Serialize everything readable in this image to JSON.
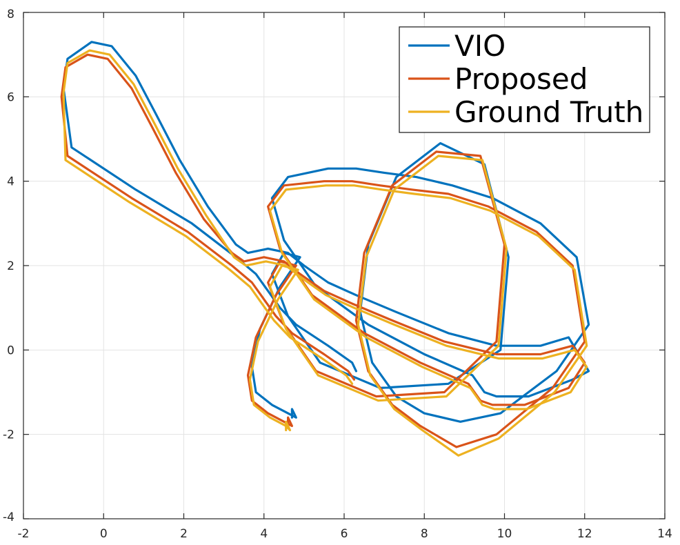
{
  "chart_data": {
    "type": "line",
    "title": "",
    "xlabel": "",
    "ylabel": "",
    "xlim": [
      -2,
      14
    ],
    "ylim": [
      -4,
      8
    ],
    "xticks": [
      -2,
      0,
      2,
      4,
      6,
      8,
      10,
      12,
      14
    ],
    "yticks": [
      -4,
      -2,
      0,
      2,
      4,
      6,
      8
    ],
    "grid": true,
    "legend_position": "top-right",
    "series": [
      {
        "name": "VIO",
        "color": "#0072BD",
        "x": [
          6.3,
          6.2,
          5.6,
          4.8,
          4.4,
          4.1,
          3.8,
          3.3,
          2.2,
          0.8,
          -0.8,
          -1.0,
          -0.9,
          -0.3,
          0.2,
          0.8,
          1.3,
          1.9,
          2.6,
          3.3,
          3.6,
          4.1,
          4.6,
          5.0,
          5.6,
          6.3,
          7.3,
          8.6,
          9.8,
          10.9,
          11.6,
          12.1,
          11.7,
          10.6,
          9.8,
          9.5,
          9.2,
          8.0,
          6.6,
          5.3,
          4.5,
          4.2,
          4.6,
          5.6,
          6.3,
          7.0,
          7.8,
          8.7,
          9.7,
          10.9,
          11.8,
          12.1,
          11.3,
          9.9,
          8.9,
          8.0,
          7.3,
          6.7,
          6.4,
          6.6,
          7.3,
          8.4,
          9.5,
          10.1,
          9.9,
          8.6,
          6.9,
          5.4,
          4.6,
          4.2,
          4.5,
          4.9,
          4.4,
          3.9,
          3.7,
          3.8,
          4.2,
          4.6,
          4.8,
          4.7,
          4.7
        ],
        "y": [
          -0.5,
          -0.3,
          0.1,
          0.6,
          1.0,
          1.4,
          1.8,
          2.2,
          3.0,
          3.8,
          4.8,
          6.2,
          6.9,
          7.3,
          7.2,
          6.5,
          5.6,
          4.5,
          3.4,
          2.5,
          2.3,
          2.4,
          2.3,
          2.0,
          1.6,
          1.3,
          0.9,
          0.4,
          0.1,
          0.1,
          0.3,
          -0.5,
          -0.7,
          -1.1,
          -1.1,
          -1.0,
          -0.6,
          -0.1,
          0.6,
          1.5,
          2.6,
          3.6,
          4.1,
          4.3,
          4.3,
          4.2,
          4.1,
          3.9,
          3.6,
          3.0,
          2.2,
          0.6,
          -0.5,
          -1.5,
          -1.7,
          -1.5,
          -1.1,
          -0.3,
          0.9,
          2.5,
          4.1,
          4.9,
          4.4,
          2.2,
          0.0,
          -0.8,
          -0.9,
          -0.3,
          0.8,
          1.8,
          2.3,
          2.2,
          1.5,
          0.5,
          -0.4,
          -1.0,
          -1.3,
          -1.5,
          -1.6,
          -1.4,
          -1.6
        ]
      },
      {
        "name": "Proposed",
        "color": "#D95319",
        "x": [
          6.25,
          6.1,
          5.5,
          4.7,
          4.3,
          4.0,
          3.7,
          3.2,
          2.1,
          0.7,
          -0.9,
          -1.05,
          -0.95,
          -0.4,
          0.1,
          0.7,
          1.2,
          1.8,
          2.5,
          3.2,
          3.5,
          4.0,
          4.5,
          4.9,
          5.5,
          6.2,
          7.2,
          8.5,
          9.8,
          10.9,
          11.7,
          12.0,
          11.6,
          10.5,
          9.7,
          9.4,
          9.1,
          7.9,
          6.5,
          5.2,
          4.4,
          4.1,
          4.5,
          5.5,
          6.2,
          6.9,
          7.7,
          8.6,
          9.6,
          10.8,
          11.7,
          12.0,
          11.2,
          9.8,
          8.8,
          7.9,
          7.2,
          6.6,
          6.3,
          6.5,
          7.2,
          8.3,
          9.4,
          10.0,
          9.8,
          8.5,
          6.8,
          5.3,
          4.5,
          4.1,
          4.4,
          4.8,
          4.3,
          3.8,
          3.6,
          3.7,
          4.1,
          4.5,
          4.7,
          4.6,
          4.6
        ],
        "y": [
          -0.7,
          -0.5,
          -0.1,
          0.4,
          0.8,
          1.2,
          1.6,
          2.0,
          2.8,
          3.6,
          4.6,
          6.0,
          6.7,
          7.0,
          6.9,
          6.2,
          5.3,
          4.2,
          3.1,
          2.3,
          2.1,
          2.2,
          2.1,
          1.8,
          1.4,
          1.1,
          0.7,
          0.2,
          -0.1,
          -0.1,
          0.1,
          -0.3,
          -0.9,
          -1.3,
          -1.3,
          -1.2,
          -0.8,
          -0.3,
          0.4,
          1.3,
          2.4,
          3.4,
          3.9,
          4.0,
          4.0,
          3.9,
          3.8,
          3.7,
          3.4,
          2.8,
          2.0,
          0.2,
          -0.9,
          -2.0,
          -2.3,
          -1.8,
          -1.3,
          -0.5,
          0.7,
          2.3,
          3.9,
          4.7,
          4.6,
          2.5,
          0.2,
          -1.0,
          -1.1,
          -0.5,
          0.6,
          1.6,
          2.1,
          2.0,
          1.3,
          0.3,
          -0.6,
          -1.2,
          -1.5,
          -1.7,
          -1.8,
          -1.6,
          -1.8
        ]
      },
      {
        "name": "Ground Truth",
        "color": "#EDB120",
        "x": [
          6.2,
          6.05,
          5.45,
          4.65,
          4.25,
          3.95,
          3.65,
          3.15,
          2.05,
          0.65,
          -0.95,
          -1.0,
          -0.9,
          -0.35,
          0.15,
          0.75,
          1.25,
          1.85,
          2.55,
          3.25,
          3.55,
          4.05,
          4.55,
          4.95,
          5.55,
          6.25,
          7.25,
          8.55,
          9.85,
          10.95,
          11.75,
          12.05,
          11.65,
          10.55,
          9.75,
          9.45,
          9.15,
          7.95,
          6.55,
          5.25,
          4.45,
          4.15,
          4.55,
          5.55,
          6.25,
          6.95,
          7.75,
          8.65,
          9.65,
          10.85,
          11.75,
          12.05,
          11.25,
          9.85,
          8.85,
          7.95,
          7.25,
          6.65,
          6.35,
          6.55,
          7.25,
          8.35,
          9.45,
          10.05,
          9.85,
          8.55,
          6.85,
          5.35,
          4.55,
          4.15,
          4.45,
          4.85,
          4.35,
          3.85,
          3.65,
          3.75,
          4.15,
          4.55,
          4.65,
          4.55,
          4.55
        ],
        "y": [
          -0.8,
          -0.6,
          -0.2,
          0.3,
          0.7,
          1.1,
          1.5,
          1.9,
          2.7,
          3.5,
          4.5,
          6.1,
          6.8,
          7.1,
          7.0,
          6.3,
          5.4,
          4.3,
          3.2,
          2.2,
          2.0,
          2.1,
          2.0,
          1.7,
          1.3,
          1.0,
          0.6,
          0.1,
          -0.2,
          -0.2,
          0.0,
          -0.4,
          -1.0,
          -1.4,
          -1.4,
          -1.3,
          -0.9,
          -0.4,
          0.3,
          1.2,
          2.3,
          3.3,
          3.8,
          3.9,
          3.9,
          3.8,
          3.7,
          3.6,
          3.3,
          2.7,
          1.9,
          0.1,
          -1.0,
          -2.1,
          -2.5,
          -1.9,
          -1.4,
          -0.6,
          0.6,
          2.2,
          3.8,
          4.6,
          4.5,
          2.4,
          0.1,
          -1.1,
          -1.2,
          -0.6,
          0.5,
          1.5,
          2.0,
          1.9,
          1.2,
          0.2,
          -0.7,
          -1.3,
          -1.6,
          -1.8,
          -1.9,
          -1.7,
          -1.9
        ]
      }
    ]
  }
}
